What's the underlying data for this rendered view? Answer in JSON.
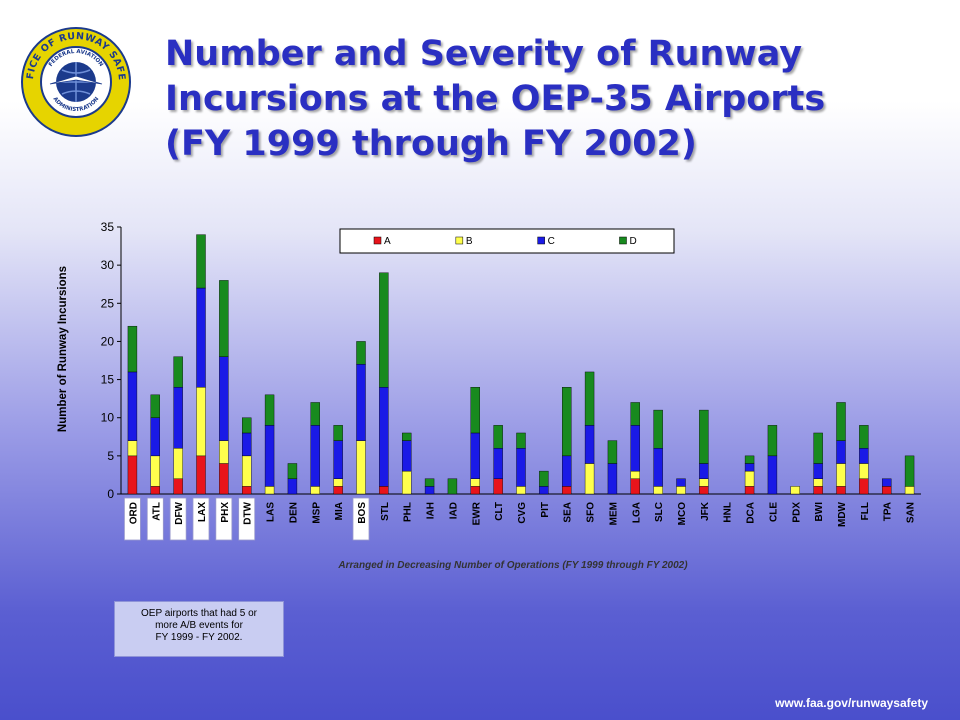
{
  "header": {
    "logo": {
      "ring_text_top": "OFFICE OF RUNWAY SAFETY",
      "inner_text_top": "FEDERAL AVIATION",
      "inner_text_bottom": "ADMINISTRATION",
      "colors": {
        "ring": "#e6d400",
        "inner": "#1b3a8c",
        "text": "#1b3a8c"
      }
    },
    "title_lines": [
      "Number and Severity of Runway",
      "Incursions at the OEP-35 Airports",
      "(FY 1999 through FY 2002)"
    ]
  },
  "chart_data": {
    "type": "bar",
    "stacked": true,
    "title": "",
    "xlabel": "Arranged in Decreasing Number of Operations (FY 1999 through FY 2002)",
    "ylabel": "Number of Runway Incursions",
    "ylim": [
      0,
      35
    ],
    "yticks": [
      0,
      5,
      10,
      15,
      20,
      25,
      30,
      35
    ],
    "grid": false,
    "legend_position": "top",
    "categories": [
      "ORD",
      "ATL",
      "DFW",
      "LAX",
      "PHX",
      "DTW",
      "LAS",
      "DEN",
      "MSP",
      "MIA",
      "BOS",
      "STL",
      "PHL",
      "IAH",
      "IAD",
      "EWR",
      "CLT",
      "CVG",
      "PIT",
      "SEA",
      "SFO",
      "MEM",
      "LGA",
      "SLC",
      "MCO",
      "JFK",
      "HNL",
      "DCA",
      "CLE",
      "PDX",
      "BWI",
      "MDW",
      "FLL",
      "TPA",
      "SAN"
    ],
    "highlighted_categories": [
      "ORD",
      "ATL",
      "DFW",
      "LAX",
      "PHX",
      "DTW",
      "BOS"
    ],
    "series": [
      {
        "name": "A",
        "color": "#e8141b",
        "values": [
          5,
          1,
          2,
          5,
          4,
          1,
          0,
          0,
          0,
          1,
          0,
          1,
          0,
          0,
          0,
          1,
          2,
          0,
          0,
          1,
          0,
          0,
          2,
          0,
          0,
          1,
          0,
          1,
          0,
          0,
          1,
          1,
          2,
          1,
          0
        ]
      },
      {
        "name": "B",
        "color": "#ffff4d",
        "values": [
          2,
          4,
          4,
          9,
          3,
          4,
          1,
          0,
          1,
          1,
          7,
          0,
          3,
          0,
          0,
          1,
          0,
          1,
          0,
          0,
          4,
          0,
          1,
          1,
          1,
          1,
          0,
          2,
          0,
          1,
          1,
          3,
          2,
          0,
          1
        ]
      },
      {
        "name": "C",
        "color": "#1a1ae6",
        "values": [
          9,
          5,
          8,
          13,
          11,
          3,
          8,
          2,
          8,
          5,
          10,
          13,
          4,
          1,
          0,
          6,
          4,
          5,
          1,
          4,
          5,
          4,
          6,
          5,
          1,
          2,
          0,
          1,
          5,
          0,
          2,
          3,
          2,
          1,
          0
        ]
      },
      {
        "name": "D",
        "color": "#188a1e",
        "values": [
          6,
          3,
          4,
          7,
          10,
          2,
          4,
          2,
          3,
          2,
          3,
          15,
          1,
          1,
          2,
          6,
          3,
          2,
          2,
          9,
          7,
          3,
          3,
          5,
          0,
          7,
          0,
          1,
          4,
          0,
          4,
          5,
          3,
          0,
          4
        ]
      }
    ]
  },
  "note": {
    "lines": [
      "OEP airports that had 5 or",
      "more A/B events for",
      "FY 1999 - FY 2002."
    ]
  },
  "footer": {
    "url": "www.faa.gov/runwaysafety"
  }
}
